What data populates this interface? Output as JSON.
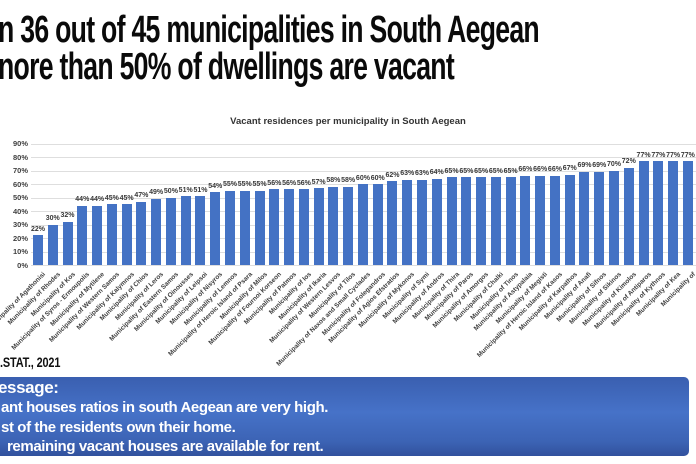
{
  "header": {
    "line1": "n 36 out of 45 municipalities in South Aegean",
    "line2": "nore than 50% of dwellings are vacant"
  },
  "source": ".STAT., 2021",
  "chart_data": {
    "type": "bar",
    "title": "Vacant residences per municipality in South Aegean",
    "xlabel": "",
    "ylabel": "",
    "ylim": [
      0,
      90
    ],
    "yticks": [
      "0%",
      "10%",
      "20%",
      "30%",
      "40%",
      "50%",
      "60%",
      "70%",
      "80%",
      "90%"
    ],
    "grid": true,
    "legend": false,
    "bar_color": "#4472C4",
    "categories": [
      "Municipality of Agathonisi",
      "Municipality of Rhodes",
      "Municipality of Kos",
      "Municipality of Syros - Ermoupolis",
      "Municipality of Mytilene",
      "Municipality of Western Samos",
      "Municipality of Kalymnos",
      "Municipality of Chios",
      "Municipality of Leros",
      "Municipality of Eastern Samos",
      "Municipality of Oinousses",
      "Municipality of Leipsoi",
      "Municipality of Nisyros",
      "Municipality of Lemnos",
      "Municipality of Heroic Island of Psara",
      "Municipality of Milos",
      "Municipality of Fournoi Korseon",
      "Municipality of Patmos",
      "Municipality of Ios",
      "Municipality of Ikaria",
      "Municipality of Western Lesvos",
      "Municipality of Tilos",
      "Municipality of Naxos and Small Cyclades",
      "Municipality of Folegandros",
      "Municipality of Agios Efstratios",
      "Municipality of Mykonos",
      "Municipality of Symi",
      "Municipality of Andros",
      "Municipality of Thira",
      "Municipality of Paros",
      "Municipality of Amorgos",
      "Municipality of Chalki",
      "Municipality of Tinos",
      "Municipality of Astypalaia",
      "Municipality of Megisti",
      "Municipality of Heroic Island of Kasos",
      "Municipality of Karpathos",
      "Municipality of Anafi",
      "Municipality of Sifnos",
      "Municipality of Sikinos",
      "Municipality of Kimolos",
      "Municipality of Antiparos",
      "Municipality of Kythnos",
      "Municipality of Kea",
      "Municipality of"
    ],
    "values": [
      22,
      30,
      32,
      44,
      44,
      45,
      45,
      47,
      49,
      50,
      51,
      51,
      54,
      55,
      55,
      55,
      56,
      56,
      56,
      57,
      58,
      58,
      60,
      60,
      62,
      63,
      63,
      64,
      65,
      65,
      65,
      65,
      65,
      66,
      66,
      66,
      67,
      69,
      69,
      70,
      72,
      77,
      77,
      77,
      77
    ],
    "value_labels": [
      "22%",
      "30%",
      "32%",
      "44%",
      "44%",
      "45%",
      "45%",
      "47%",
      "49%",
      "50%",
      "51%",
      "51%",
      "54%",
      "55%",
      "55%",
      "55%",
      "56%",
      "56%",
      "56%",
      "57%",
      "58%",
      "58%",
      "60%",
      "60%",
      "62%",
      "63%",
      "63%",
      "64%",
      "65%",
      "65%",
      "65%",
      "65%",
      "65%",
      "66%",
      "66%",
      "66%",
      "67%",
      "69%",
      "69%",
      "70%",
      "72%",
      "77%",
      "77%",
      "77%",
      "77%"
    ]
  },
  "message_box": {
    "bg_color": "#3E68BC",
    "lines": [
      "essage:",
      "ant houses ratios in south Aegean are very high.",
      "st of the residents own their home.",
      "remaining vacant houses are available for rent."
    ]
  }
}
